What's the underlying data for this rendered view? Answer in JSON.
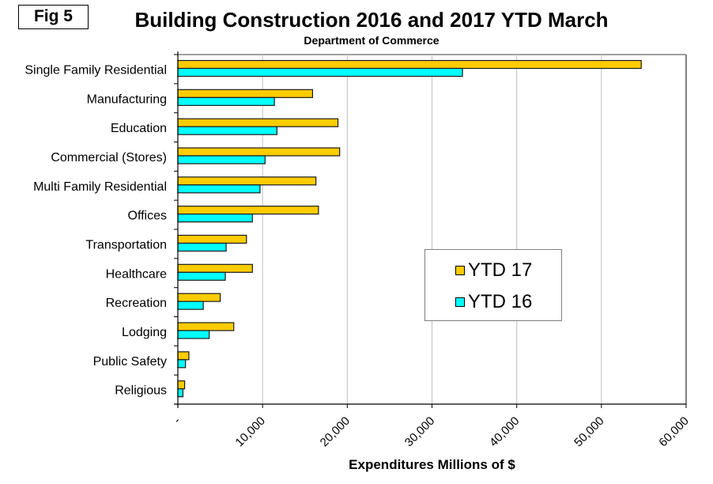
{
  "fig_label": "Fig 5",
  "colors": {
    "ytd17": "#ffcc00",
    "ytd16": "#00ffff",
    "bar_border": "#1a1a1a",
    "grid": "#c0c0c0",
    "plot_border": "#808080"
  },
  "chart_data": {
    "type": "bar",
    "orientation": "horizontal",
    "title": "Building Construction 2016 and 2017 YTD March",
    "subtitle": "Department of Commerce",
    "xlabel": "Expenditures Millions of $",
    "ylabel": "",
    "xlim": [
      0,
      60000
    ],
    "x_ticks": [
      0,
      10000,
      20000,
      30000,
      40000,
      50000,
      60000
    ],
    "x_tick_labels": [
      "-",
      "10,000",
      "20,000",
      "30,000",
      "40,000",
      "50,000",
      "60,000"
    ],
    "grid": "vertical",
    "legend_position": "center-right",
    "categories": [
      "Single Family Residential",
      "Manufacturing",
      "Education",
      "Commercial (Stores)",
      "Multi Family Residential",
      "Offices",
      "Transportation",
      "Healthcare",
      "Recreation",
      "Lodging",
      "Public Safety",
      "Religious"
    ],
    "series": [
      {
        "name": "YTD 17",
        "values": [
          54700,
          15900,
          18900,
          19100,
          16300,
          16600,
          8100,
          8800,
          5000,
          6600,
          1300,
          800
        ]
      },
      {
        "name": "YTD 16",
        "values": [
          33600,
          11400,
          11700,
          10300,
          9700,
          8800,
          5700,
          5600,
          3000,
          3700,
          900,
          600
        ]
      }
    ]
  }
}
